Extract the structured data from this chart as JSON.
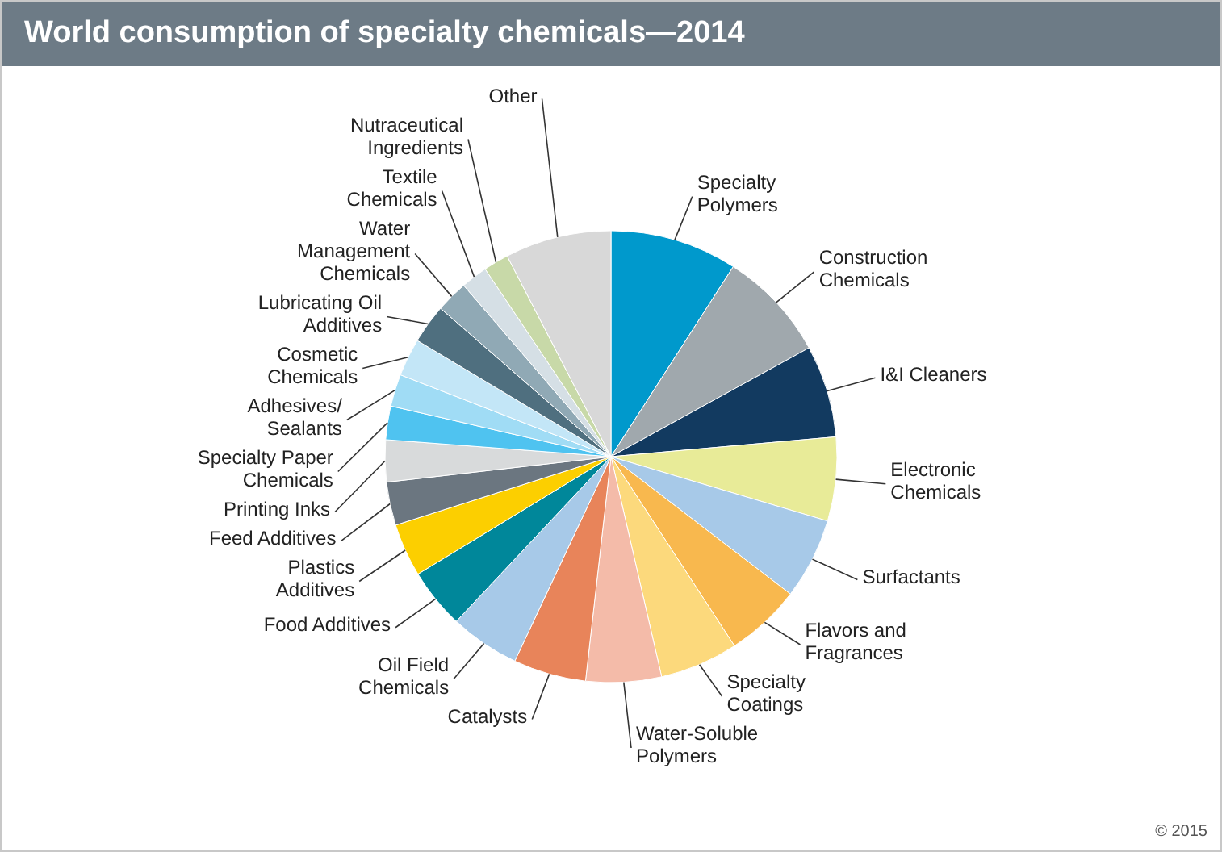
{
  "chart_data": {
    "type": "pie",
    "title": "World consumption of specialty chemicals—2014",
    "categories": [
      "Specialty\nPolymers",
      "Construction\nChemicals",
      "I&I Cleaners",
      "Electronic\nChemicals",
      "Surfactants",
      "Flavors and\nFragrances",
      "Specialty\nCoatings",
      "Water-Soluble\nPolymers",
      "Catalysts",
      "Oil Field\nChemicals",
      "Food Additives",
      "Plastics\nAdditives",
      "Feed Additives",
      "Printing Inks",
      "Specialty Paper\nChemicals",
      "Adhesives/\nSealants",
      "Cosmetic\nChemicals",
      "Lubricating Oil\nAdditives",
      "Water\nManagement\nChemicals",
      "Textile\nChemicals",
      "Nutraceutical\nIngredients",
      "Other"
    ],
    "values": [
      9.1,
      7.9,
      6.6,
      6.0,
      5.8,
      5.4,
      5.6,
      5.4,
      5.2,
      5.0,
      4.3,
      3.8,
      3.1,
      3.0,
      2.4,
      2.3,
      2.7,
      2.8,
      2.3,
      1.9,
      1.8,
      7.6
    ],
    "colors": [
      "#0099cc",
      "#a0a8ad",
      "#123a60",
      "#e8eb98",
      "#a7c9e8",
      "#f8b84e",
      "#fcd97c",
      "#f4bba9",
      "#e8845a",
      "#a7c9e8",
      "#00879a",
      "#fccf00",
      "#6b7680",
      "#d8dadb",
      "#4fc3f0",
      "#a0dcf5",
      "#c3e6f7",
      "#4f6f7f",
      "#90a9b5",
      "#d5dfe5",
      "#c8d9a8",
      "#d8d8d8"
    ],
    "annotations": [
      "© 2015"
    ]
  }
}
